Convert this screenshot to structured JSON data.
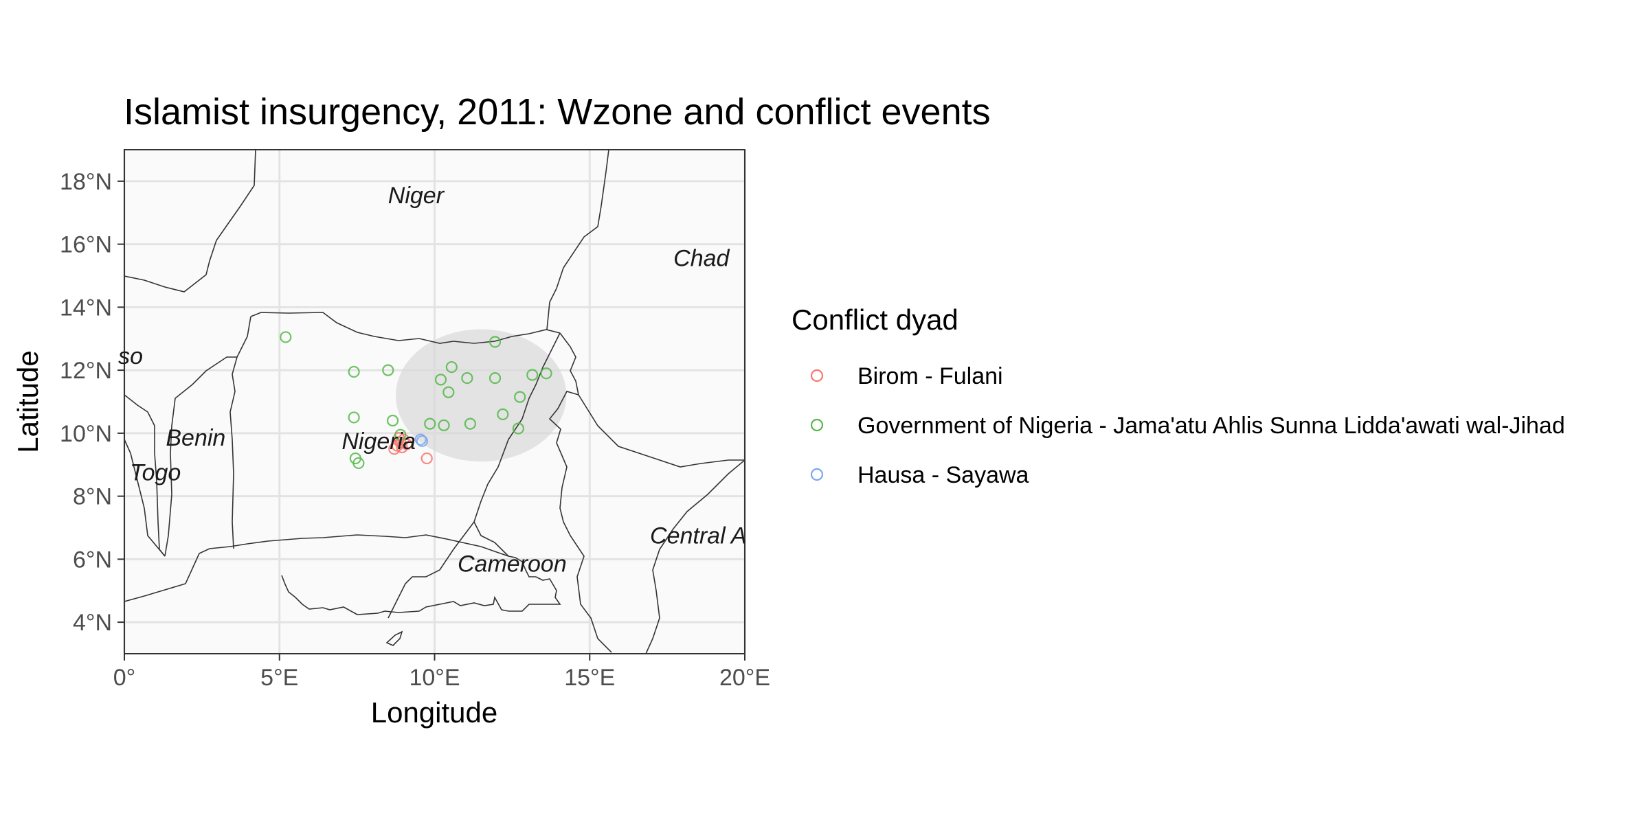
{
  "chart_data": {
    "type": "scatter",
    "title": "Islamist insurgency, 2011: Wzone and conflict events",
    "xlabel": "Longitude",
    "ylabel": "Latitude",
    "xlim": [
      0,
      20
    ],
    "ylim": [
      3,
      19
    ],
    "x_ticks": [
      {
        "value": 0,
        "label": "0°"
      },
      {
        "value": 5,
        "label": "5°E"
      },
      {
        "value": 10,
        "label": "10°E"
      },
      {
        "value": 15,
        "label": "15°E"
      },
      {
        "value": 20,
        "label": "20°E"
      }
    ],
    "y_ticks": [
      {
        "value": 4,
        "label": "4°N"
      },
      {
        "value": 6,
        "label": "6°N"
      },
      {
        "value": 8,
        "label": "8°N"
      },
      {
        "value": 10,
        "label": "10°N"
      },
      {
        "value": 12,
        "label": "12°N"
      },
      {
        "value": 14,
        "label": "14°N"
      },
      {
        "value": 16,
        "label": "16°N"
      },
      {
        "value": 18,
        "label": "18°N"
      }
    ],
    "grid": true,
    "legend": {
      "title": "Conflict dyad",
      "position": "right"
    },
    "wzone": {
      "center_lon": 11.5,
      "center_lat": 11.2,
      "radius_lon": 2.75,
      "radius_lat": 2.1,
      "color": "#d9d9d9"
    },
    "country_labels": [
      {
        "name": "Niger",
        "lon": 9.4,
        "lat": 17.3
      },
      {
        "name": "Chad",
        "lon": 18.6,
        "lat": 15.3
      },
      {
        "name": "Nigeria",
        "lon": 8.2,
        "lat": 9.5
      },
      {
        "name": "Benin",
        "lon": 2.3,
        "lat": 9.6
      },
      {
        "name": "Togo",
        "lon": 1.0,
        "lat": 8.5
      },
      {
        "name": "Cameroon",
        "lon": 12.5,
        "lat": 5.6
      },
      {
        "name": "Central A",
        "lon": 18.5,
        "lat": 6.5
      },
      {
        "name": "so",
        "lon": 0.2,
        "lat": 12.2
      }
    ],
    "series": [
      {
        "name": "Birom - Fulani",
        "color": "#f8766d",
        "points": [
          {
            "lon": 8.8,
            "lat": 9.6
          },
          {
            "lon": 8.9,
            "lat": 9.7
          },
          {
            "lon": 9.0,
            "lat": 9.8
          },
          {
            "lon": 8.7,
            "lat": 9.5
          },
          {
            "lon": 8.95,
            "lat": 9.55
          },
          {
            "lon": 8.85,
            "lat": 9.85
          },
          {
            "lon": 9.1,
            "lat": 9.65
          },
          {
            "lon": 9.75,
            "lat": 9.2
          }
        ]
      },
      {
        "name": "Government of Nigeria - Jama'atu Ahlis Sunna Lidda'awati wal-Jihad",
        "color": "#54b848",
        "points": [
          {
            "lon": 5.2,
            "lat": 13.05
          },
          {
            "lon": 7.4,
            "lat": 11.95
          },
          {
            "lon": 8.5,
            "lat": 12.0
          },
          {
            "lon": 7.4,
            "lat": 10.5
          },
          {
            "lon": 8.65,
            "lat": 10.4
          },
          {
            "lon": 7.45,
            "lat": 9.2
          },
          {
            "lon": 7.55,
            "lat": 9.05
          },
          {
            "lon": 8.9,
            "lat": 9.95
          },
          {
            "lon": 9.85,
            "lat": 10.3
          },
          {
            "lon": 10.2,
            "lat": 11.7
          },
          {
            "lon": 10.45,
            "lat": 11.3
          },
          {
            "lon": 10.55,
            "lat": 12.1
          },
          {
            "lon": 11.05,
            "lat": 11.75
          },
          {
            "lon": 10.3,
            "lat": 10.25
          },
          {
            "lon": 11.15,
            "lat": 10.3
          },
          {
            "lon": 11.95,
            "lat": 12.9
          },
          {
            "lon": 11.95,
            "lat": 11.75
          },
          {
            "lon": 12.2,
            "lat": 10.6
          },
          {
            "lon": 12.75,
            "lat": 11.15
          },
          {
            "lon": 12.7,
            "lat": 10.15
          },
          {
            "lon": 13.15,
            "lat": 11.85
          },
          {
            "lon": 13.6,
            "lat": 11.9
          }
        ]
      },
      {
        "name": "Hausa - Sayawa",
        "color": "#7aa6f0",
        "points": [
          {
            "lon": 9.55,
            "lat": 9.8
          },
          {
            "lon": 9.6,
            "lat": 9.75
          }
        ]
      }
    ]
  }
}
